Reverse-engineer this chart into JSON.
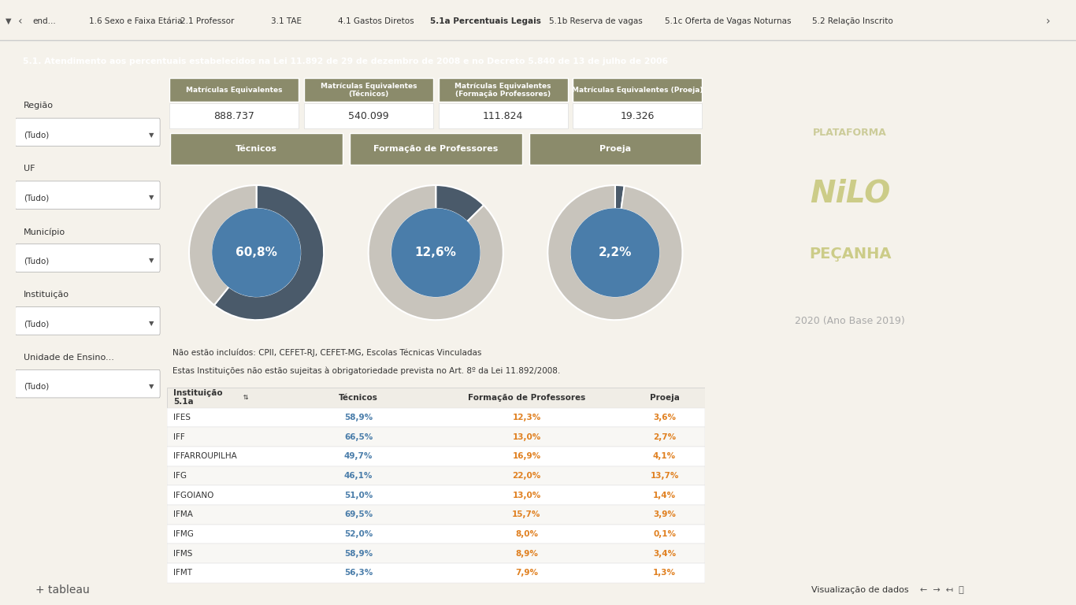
{
  "title": "5.1. Atendimento aos percentuais estabelecidos na Lei 11.892 de 29 de dezembro de 2008 e no Decreto 5.840 de 13 de julho de 2006",
  "tab_labels": [
    "end...",
    "1.6 Sexo e Faixa Etária",
    "2.1 Professor",
    "3.1 TAE",
    "4.1 Gastos Diretos",
    "5.1a Percentuais Legais",
    "5.1b Reserva de vagas",
    "5.1c Oferta de Vagas Noturnas",
    "5.2 Relação Inscrito"
  ],
  "active_tab": "5.1a Percentuais Legais",
  "filters": [
    {
      "label": "Região",
      "value": "(Tudo)"
    },
    {
      "label": "UF",
      "value": "(Tudo)"
    },
    {
      "label": "Município",
      "value": "(Tudo)"
    },
    {
      "label": "Instituição",
      "value": "(Tudo)"
    },
    {
      "label": "Unidade de Ensino...",
      "value": "(Tudo)"
    }
  ],
  "kpi_headers": [
    "Matrículas Equivalentes",
    "Matrículas Equivalentes\n(Técnicos)",
    "Matrículas Equivalentes\n(Formação Professores)",
    "Matrículas Equivalentes (Proeja)"
  ],
  "kpi_values": [
    "888.737",
    "540.099",
    "111.824",
    "19.326"
  ],
  "donut_labels": [
    "Técnicos",
    "Formação de Professores",
    "Proeja"
  ],
  "donut_percentages": [
    "60,8%",
    "12,6%",
    "2,2%"
  ],
  "donut_values": [
    60.8,
    12.6,
    2.2
  ],
  "header_bg": "#8B8B6B",
  "header_text": "#FFFFFF",
  "title_bg": "#2B2B2B",
  "title_text": "#FFFFFF",
  "bg_color": "#F5F2EB",
  "donut_inner_color": "#4A7DAA",
  "donut_outer_filled": "#4A5A6A",
  "donut_outer_empty": "#C8C4BC",
  "table_data": [
    [
      "IFES",
      "58,9%",
      "12,3%",
      "3,6%"
    ],
    [
      "IFF",
      "66,5%",
      "13,0%",
      "2,7%"
    ],
    [
      "IFFARROUPILHA",
      "49,7%",
      "16,9%",
      "4,1%"
    ],
    [
      "IFG",
      "46,1%",
      "22,0%",
      "13,7%"
    ],
    [
      "IFGOIANO",
      "51,0%",
      "13,0%",
      "1,4%"
    ],
    [
      "IFMA",
      "69,5%",
      "15,7%",
      "3,9%"
    ],
    [
      "IFMG",
      "52,0%",
      "8,0%",
      "0,1%"
    ],
    [
      "IFMS",
      "58,9%",
      "8,9%",
      "3,4%"
    ],
    [
      "IFMT",
      "56,3%",
      "7,9%",
      "1,3%"
    ]
  ],
  "tecnico_color": "#4A7DAA",
  "formacao_color": "#E08020",
  "proeja_color": "#E08020",
  "note1": "Não estão incluídos: CPII, CEFET-RJ, CEFET-MG, Escolas Técnicas Vinculadas",
  "note2": "Estas Instituições não estão sujeitas à obrigatoriedade prevista no Art. 8º da Lei 11.892/2008.",
  "right_panel_bg": "#3A3A2A",
  "plataforma_text": "PLATAFORMA",
  "nilo_text": "NiLO",
  "pecanha_text": "PEÇANHA",
  "year_text": "2020 (Ano Base 2019)"
}
